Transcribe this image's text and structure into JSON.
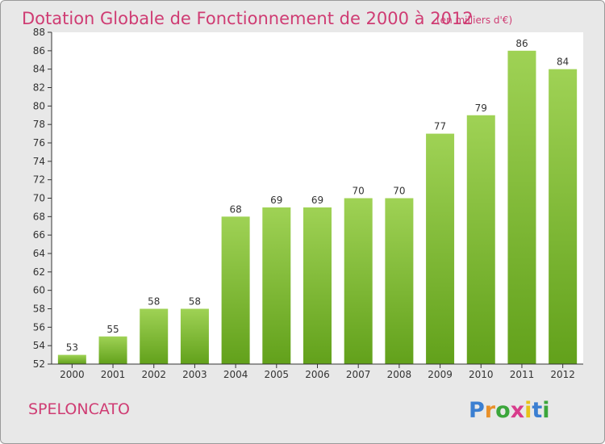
{
  "title": "Dotation Globale de Fonctionnement de 2000 à 2012",
  "subtitle": "(en milliers d'€)",
  "commune": "SPELONCATO",
  "logo": {
    "text": "Proxiti",
    "letters": [
      "P",
      "r",
      "o",
      "x",
      "i",
      "t",
      "i"
    ],
    "colors": [
      "#3b7fd1",
      "#e8902a",
      "#3ba63b",
      "#d83c8c",
      "#e8c21a",
      "#3b7fd1",
      "#3ba63b"
    ]
  },
  "colors": {
    "accent": "#cf3c73",
    "bar_top": "#9fd255",
    "bar_bottom": "#62a11b",
    "plot_background": "#ffffff",
    "frame_background": "#e8e8e8"
  },
  "chart_data": {
    "type": "bar",
    "title": "Dotation Globale de Fonctionnement de 2000 à 2012",
    "subtitle": "(en milliers d'€)",
    "categories": [
      "2000",
      "2001",
      "2002",
      "2003",
      "2004",
      "2005",
      "2006",
      "2007",
      "2008",
      "2009",
      "2010",
      "2011",
      "2012"
    ],
    "values": [
      53,
      55,
      58,
      58,
      68,
      69,
      69,
      70,
      70,
      77,
      79,
      86,
      84
    ],
    "ylim": [
      52,
      88
    ],
    "yticks": [
      52,
      54,
      56,
      58,
      60,
      62,
      64,
      66,
      68,
      70,
      72,
      74,
      76,
      78,
      80,
      82,
      84,
      86,
      88
    ],
    "grid": false,
    "legend": "none"
  }
}
